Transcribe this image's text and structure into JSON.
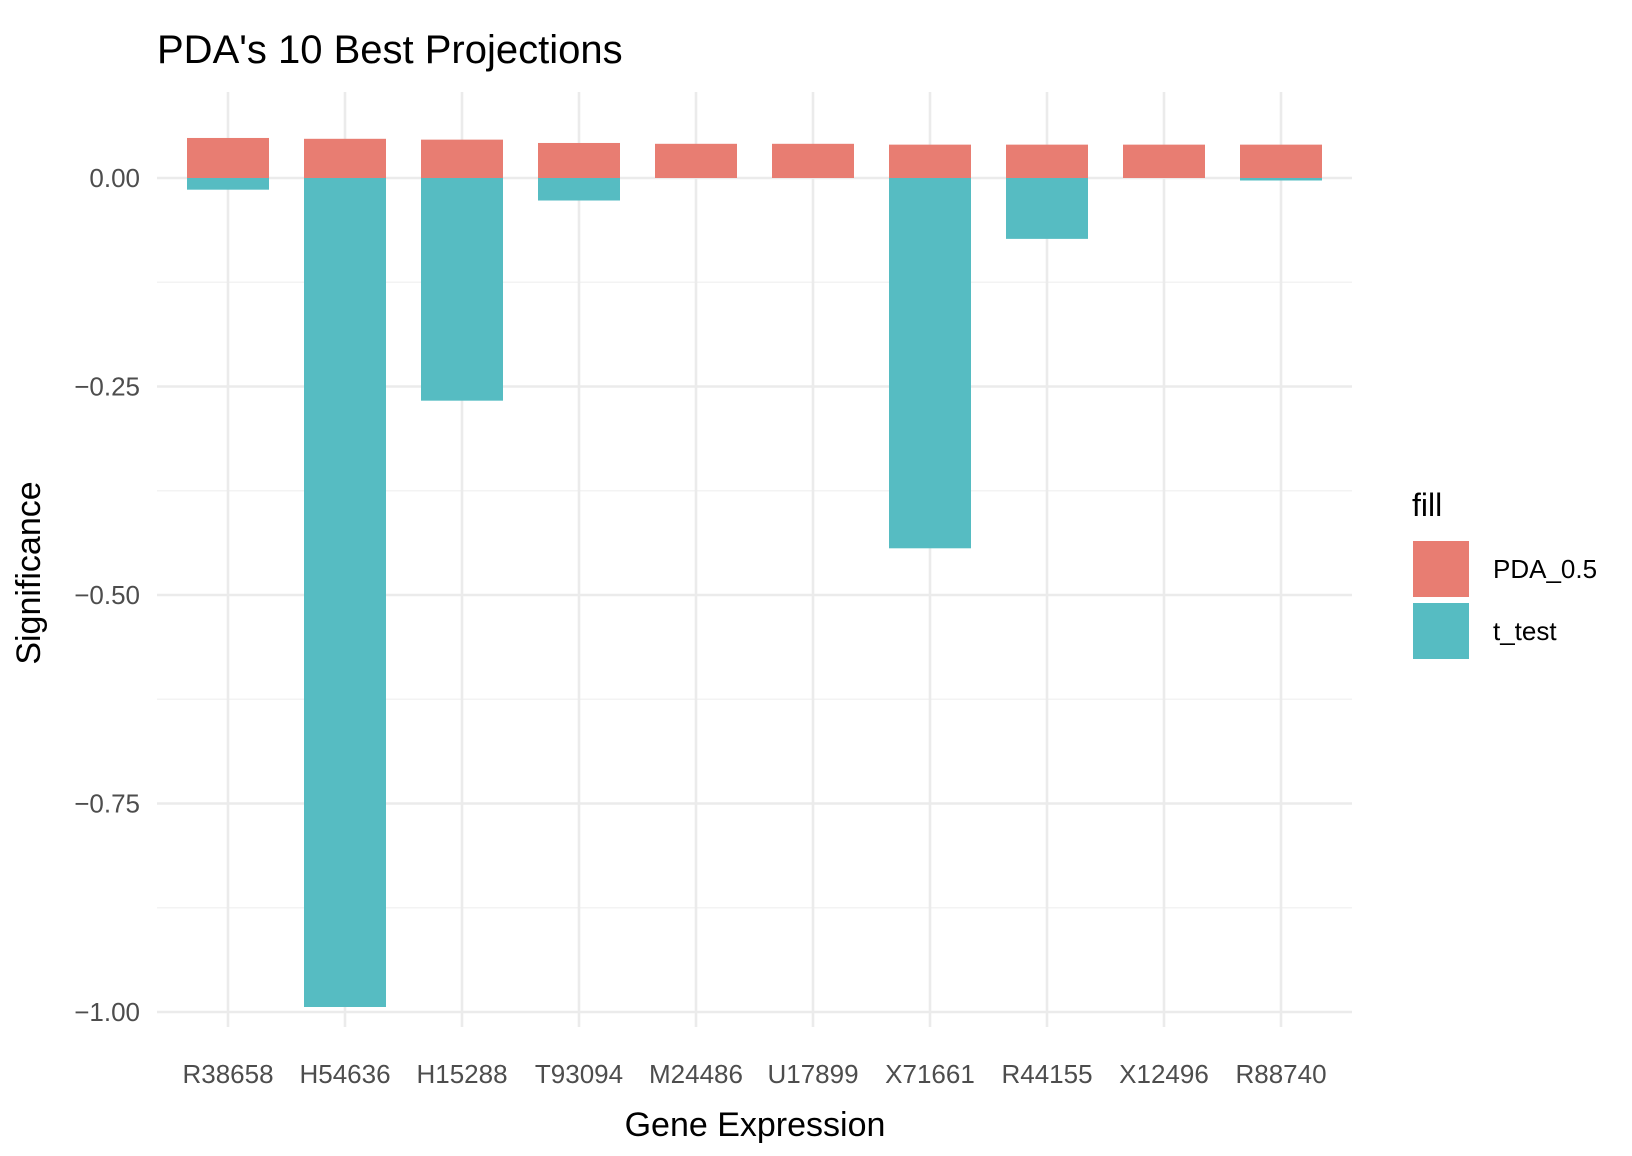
{
  "chart_data": {
    "type": "bar",
    "title": "PDA's 10 Best Projections",
    "xlabel": "Gene Expression",
    "ylabel": "Significance",
    "categories": [
      "R38658",
      "H54636",
      "H15288",
      "T93094",
      "M24486",
      "U17899",
      "X71661",
      "R44155",
      "X12496",
      "R88740"
    ],
    "series": [
      {
        "name": "PDA_0.5",
        "color": "#E87D72",
        "values": [
          0.048,
          0.047,
          0.046,
          0.042,
          0.041,
          0.041,
          0.04,
          0.04,
          0.04,
          0.04
        ]
      },
      {
        "name": "t_test",
        "color": "#56BCC2",
        "values": [
          -0.014,
          -0.994,
          -0.267,
          -0.027,
          0.0,
          0.0,
          -0.444,
          -0.073,
          0.0,
          -0.003
        ]
      }
    ],
    "ylim": [
      -1.0,
      0.05
    ],
    "yticks": [
      0.0,
      -0.25,
      -0.5,
      -0.75,
      -1.0
    ],
    "ytick_labels": [
      "0.00",
      "−0.25",
      "−0.50",
      "−0.75",
      "−1.00"
    ],
    "grid": true,
    "legend": {
      "title": "fill",
      "position": "right"
    }
  }
}
